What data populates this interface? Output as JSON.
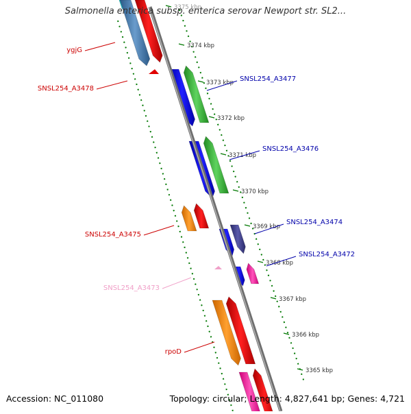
{
  "title": "Salmonella enterica subsp. enterica serovar Newport str. SL2...",
  "accession": "Accession: NC_011080",
  "summary": "Topology: circular; Length: 4,827,641 bp; Genes: 4,721",
  "ticks": [
    "3375 kbp",
    "3374 kbp",
    "3373 kbp",
    "3372 kbp",
    "3371 kbp",
    "3370 kbp",
    "3369 kbp",
    "3368 kbp",
    "3367 kbp",
    "3366 kbp",
    "3365 kbp"
  ],
  "labels": [
    {
      "text": "ygjG",
      "color": "#cc0000"
    },
    {
      "text": "SNSL254_A3478",
      "color": "#cc0000"
    },
    {
      "text": "SNSL254_A3477",
      "color": "#0000aa"
    },
    {
      "text": "SNSL254_A3476",
      "color": "#0000aa"
    },
    {
      "text": "SNSL254_A3474",
      "color": "#0000aa"
    },
    {
      "text": "SNSL254_A3472",
      "color": "#0000aa"
    },
    {
      "text": "SNSL254_A3475",
      "color": "#cc0000"
    },
    {
      "text": "SNSL254_A3473",
      "color": "#f0a0c8"
    },
    {
      "text": "rpoD",
      "color": "#cc0000"
    }
  ]
}
